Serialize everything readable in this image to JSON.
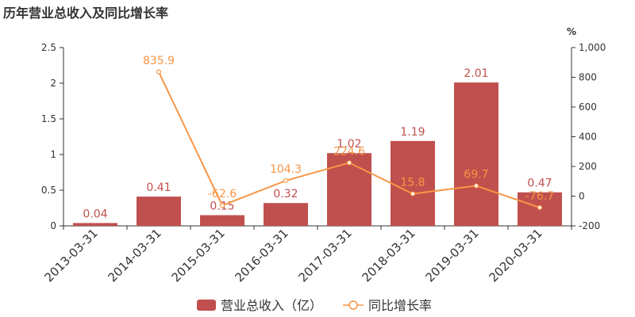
{
  "chart_data": {
    "type": "bar",
    "title": "历年营业总收入及同比增长率",
    "categories": [
      "2013-03-31",
      "2014-03-31",
      "2015-03-31",
      "2016-03-31",
      "2017-03-31",
      "2018-03-31",
      "2019-03-31",
      "2020-03-31"
    ],
    "series": [
      {
        "name": "营业总收入（亿）",
        "type": "bar",
        "axis": "left",
        "color": "#c0504d",
        "values": [
          0.04,
          0.41,
          0.15,
          0.32,
          1.02,
          1.19,
          2.01,
          0.47
        ],
        "labels": [
          "0.04",
          "0.41",
          "0.15",
          "0.32",
          "1.02",
          "1.19",
          "2.01",
          "0.47"
        ]
      },
      {
        "name": "同比增长率",
        "type": "line",
        "axis": "right",
        "color": "#f79646",
        "values": [
          null,
          835.9,
          -62.6,
          104.3,
          224.6,
          15.8,
          69.7,
          -76.7
        ],
        "labels": [
          "",
          "835.9",
          "-62.6",
          "104.3",
          "224.6",
          "15.8",
          "69.7",
          "-76.7"
        ]
      }
    ],
    "y_left": {
      "min": 0,
      "max": 2.5,
      "ticks": [
        "0",
        "0.5",
        "1",
        "1.5",
        "2",
        "2.5"
      ]
    },
    "y_right": {
      "min": -200,
      "max": 1000,
      "unit": "%",
      "ticks": [
        "-200",
        "0",
        "200",
        "400",
        "600",
        "800",
        "1,000"
      ]
    },
    "legend": {
      "placement": "bottom-center"
    },
    "grid": false
  }
}
